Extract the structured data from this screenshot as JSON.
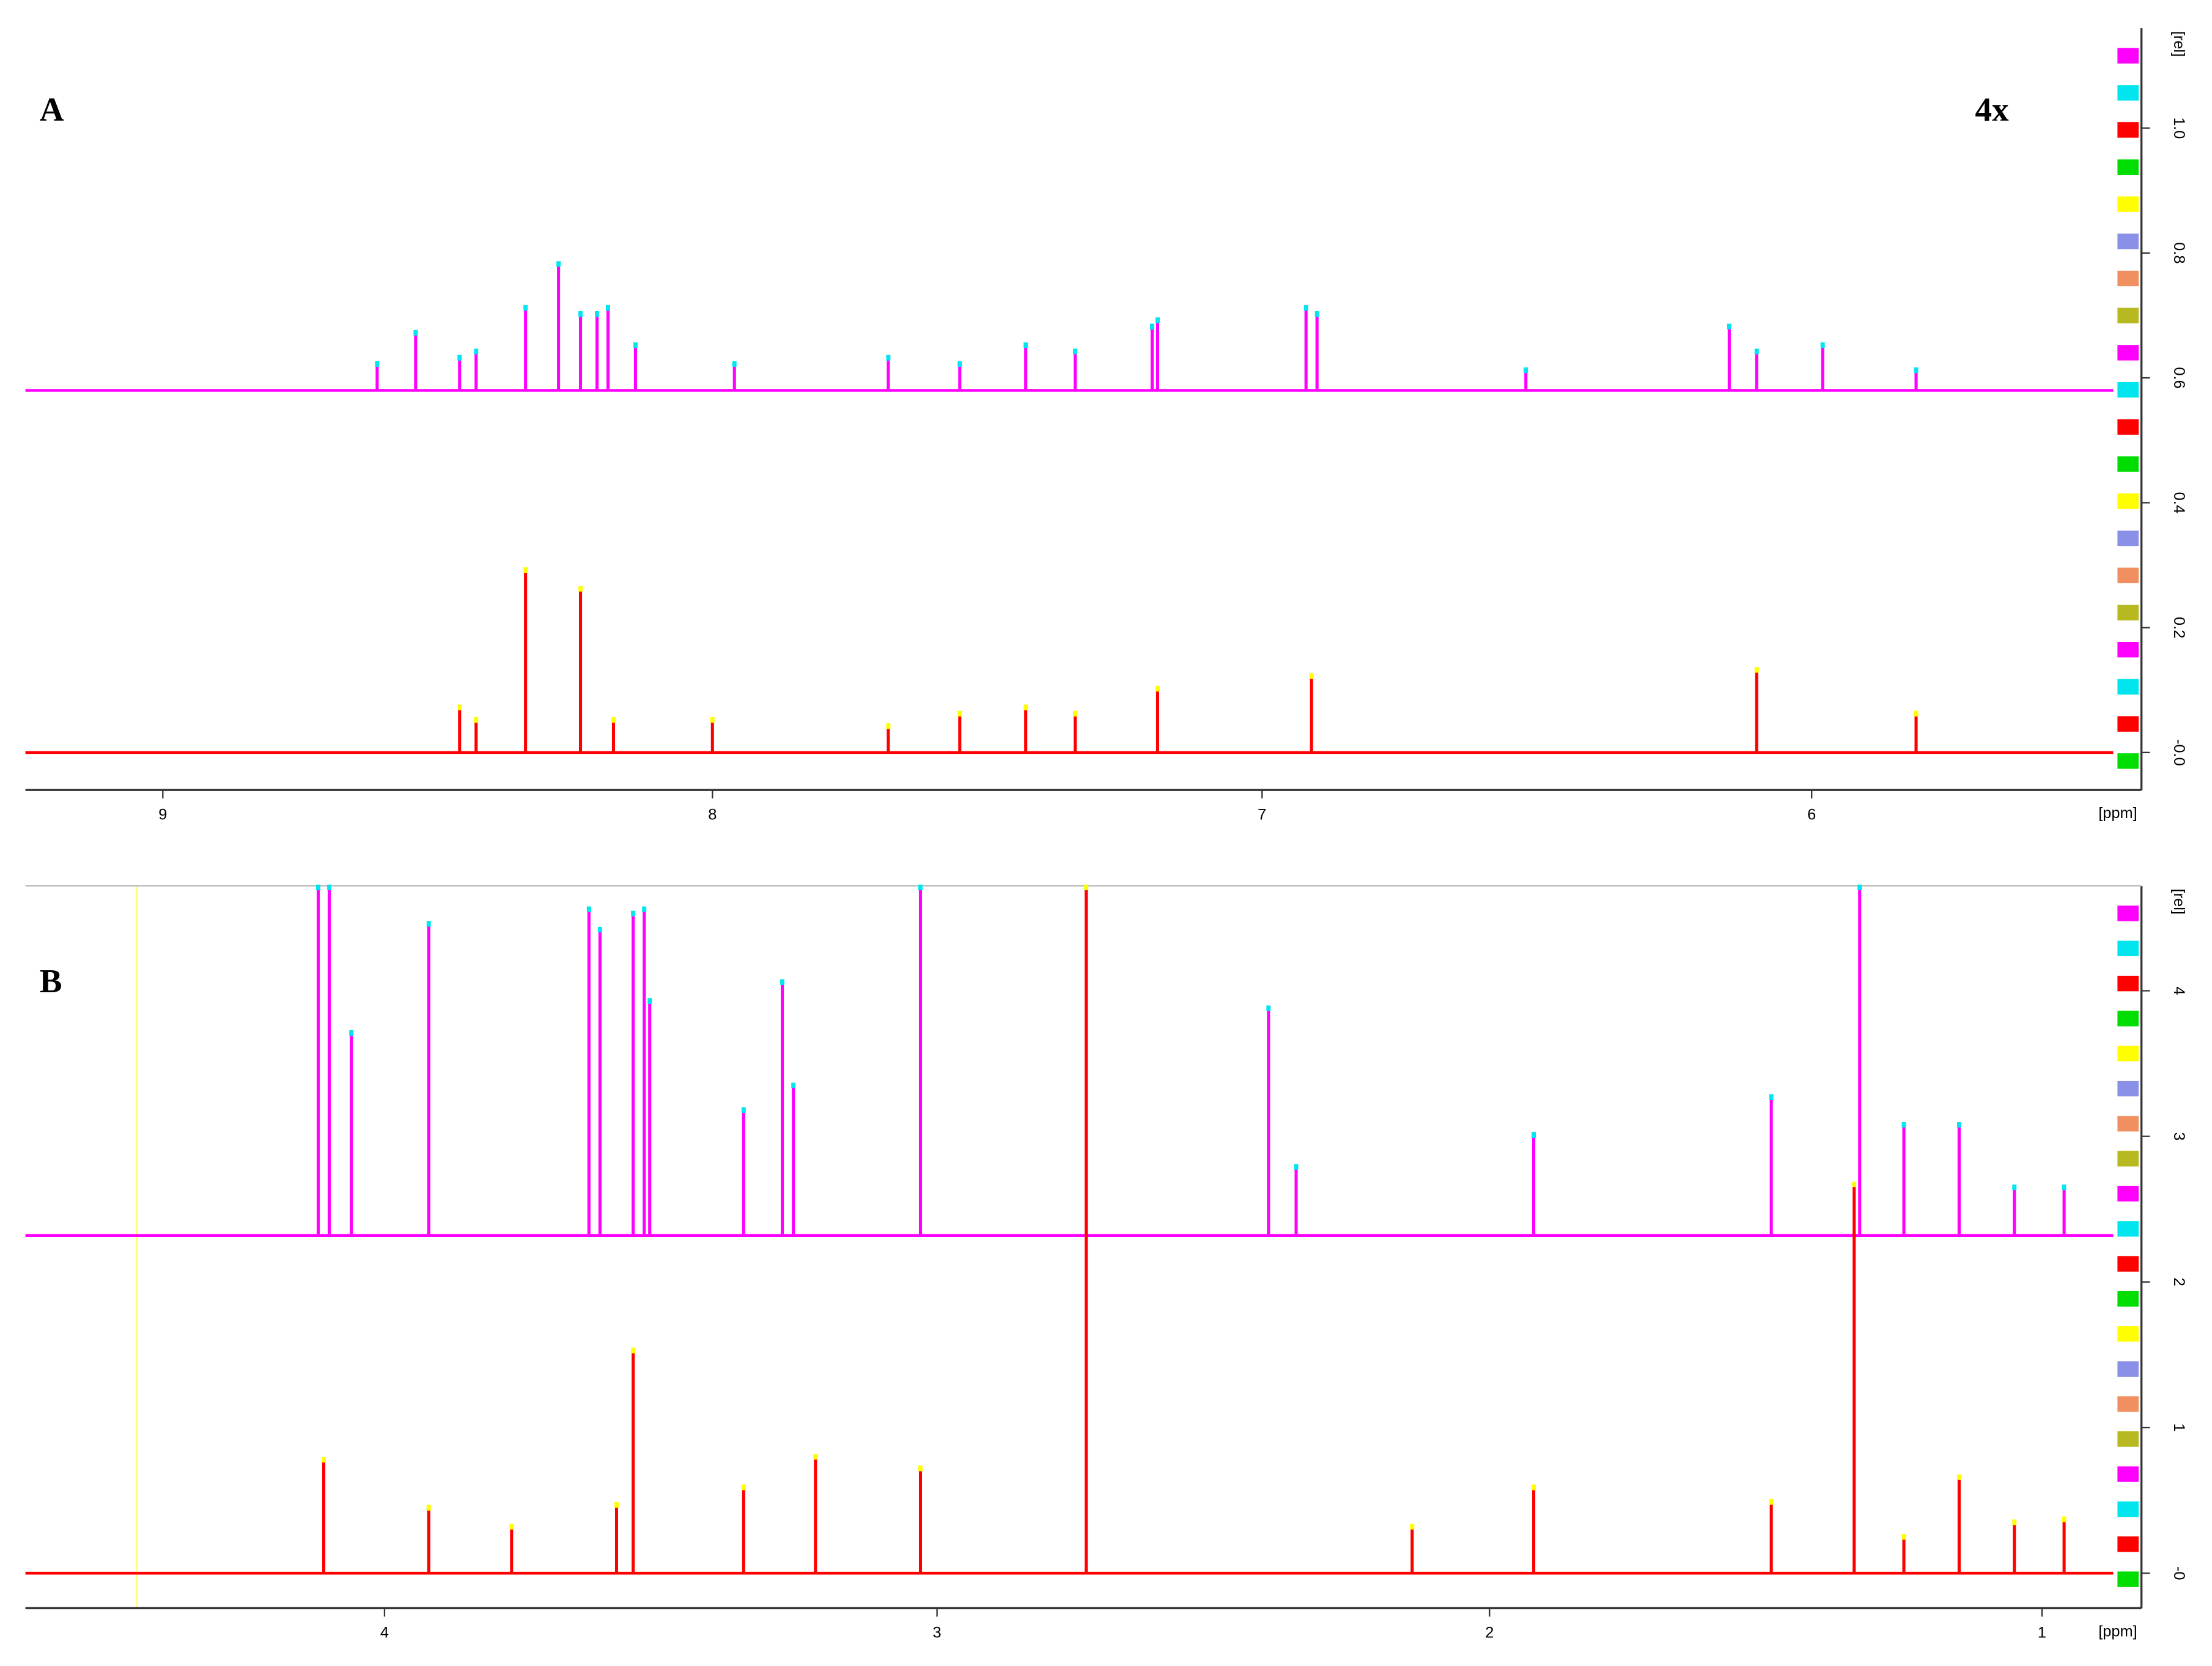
{
  "chart_data": [
    {
      "type": "spectrum",
      "panel_label": "A",
      "annotation": "4x",
      "xlabel": "[ppm]",
      "ylabel": "[rel]",
      "xlim": [
        9.25,
        5.4
      ],
      "xticks": [
        9,
        8,
        7,
        6
      ],
      "ylim": [
        -0.06,
        1.16
      ],
      "yticks": [
        {
          "value": 0,
          "label": "-0.0"
        },
        0.2,
        0.4,
        0.6,
        0.8,
        {
          "value": 1,
          "label": "1.0"
        }
      ],
      "marker_colors": [
        "#ff00ff",
        "#00e5ee",
        "#ff0000",
        "#00dd00",
        "#ffff00",
        "#8a90e8",
        "#f09060",
        "#b8b820"
      ],
      "series": [
        {
          "color": "#ff00ff",
          "baseline": 0.58,
          "x": [
            8.61,
            8.54,
            8.46,
            8.43,
            8.34,
            8.28,
            8.24,
            8.21,
            8.19,
            8.14,
            7.96,
            7.68,
            7.55,
            7.43,
            7.34,
            7.2,
            7.19,
            6.92,
            6.9,
            6.52,
            6.15,
            6.1,
            5.98,
            5.81
          ],
          "values": [
            0.62,
            0.67,
            0.63,
            0.64,
            0.71,
            0.78,
            0.7,
            0.7,
            0.71,
            0.65,
            0.62,
            0.63,
            0.62,
            0.65,
            0.64,
            0.68,
            0.69,
            0.71,
            0.7,
            0.61,
            0.68,
            0.64,
            0.65,
            0.61
          ]
        },
        {
          "color": "#ff0000",
          "baseline": 0,
          "x": [
            8.46,
            8.43,
            8.34,
            8.24,
            8.18,
            8.0,
            7.68,
            7.55,
            7.43,
            7.34,
            7.19,
            6.91,
            6.1,
            5.81
          ],
          "values": [
            0.07,
            0.05,
            0.29,
            0.26,
            0.05,
            0.05,
            0.04,
            0.06,
            0.07,
            0.06,
            0.1,
            0.12,
            0.13,
            0.06
          ]
        }
      ]
    },
    {
      "type": "spectrum",
      "panel_label": "B",
      "xlabel": "[ppm]",
      "ylabel": "[rel]",
      "xlim": [
        4.65,
        0.82
      ],
      "xticks": [
        4,
        3,
        2,
        1
      ],
      "ylim": [
        -0.24,
        4.72
      ],
      "yticks": [
        {
          "value": 0,
          "label": "-0"
        },
        1,
        2,
        3,
        4
      ],
      "marker_colors": [
        "#ff00ff",
        "#00e5ee",
        "#ff0000",
        "#00dd00",
        "#ffff00",
        "#8a90e8",
        "#f09060",
        "#b8b820"
      ],
      "series": [
        {
          "color": "#ff00ff",
          "baseline": 2.32,
          "x": [
            4.12,
            4.1,
            4.06,
            3.92,
            3.63,
            3.61,
            3.55,
            3.53,
            3.52,
            3.35,
            3.28,
            3.26,
            3.03,
            2.73,
            2.4,
            2.35,
            1.92,
            1.49,
            1.33,
            1.25,
            1.15,
            1.05,
            0.96
          ],
          "values": [
            4.7,
            4.7,
            3.7,
            4.45,
            4.55,
            4.41,
            4.52,
            4.55,
            3.92,
            3.17,
            4.05,
            3.34,
            4.7,
            4.7,
            3.87,
            2.78,
            3.0,
            3.26,
            4.7,
            3.07,
            3.07,
            2.64,
            2.64
          ]
        },
        {
          "color": "#ff0000",
          "baseline": 0,
          "x": [
            4.11,
            3.92,
            3.77,
            3.58,
            3.55,
            3.35,
            3.22,
            3.03,
            2.73,
            2.14,
            1.92,
            1.49,
            1.34,
            1.25,
            1.15,
            1.05,
            0.96
          ],
          "values": [
            0.77,
            0.44,
            0.31,
            0.46,
            1.52,
            0.58,
            0.79,
            0.71,
            4.7,
            0.31,
            0.58,
            0.48,
            2.66,
            0.24,
            0.65,
            0.34,
            0.36
          ]
        }
      ]
    }
  ]
}
